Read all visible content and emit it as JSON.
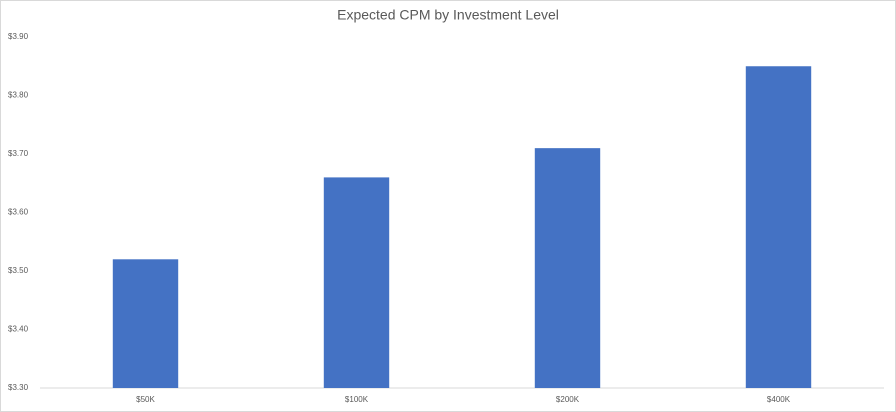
{
  "chart_data": {
    "type": "bar",
    "title": "Expected CPM by Investment Level",
    "categories": [
      "$50K",
      "$100K",
      "$200K",
      "$400K"
    ],
    "values": [
      3.52,
      3.66,
      3.71,
      3.85
    ],
    "color": "#4472c4",
    "ylim": [
      3.3,
      3.9
    ],
    "yticks": [
      {
        "value": 3.3,
        "label": "$3.30"
      },
      {
        "value": 3.4,
        "label": "$3.40"
      },
      {
        "value": 3.5,
        "label": "$3.50"
      },
      {
        "value": 3.6,
        "label": "$3.60"
      },
      {
        "value": 3.7,
        "label": "$3.70"
      },
      {
        "value": 3.8,
        "label": "$3.80"
      },
      {
        "value": 3.9,
        "label": "$3.90"
      }
    ],
    "grid": false
  }
}
